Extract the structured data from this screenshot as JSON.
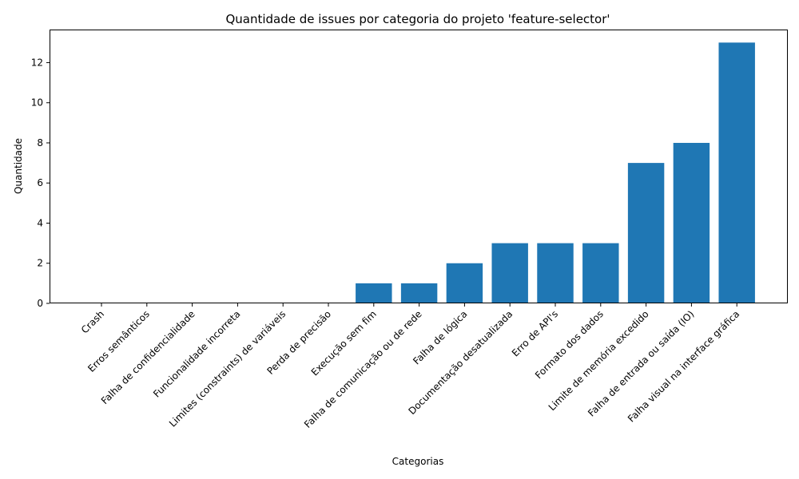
{
  "chart_data": {
    "type": "bar",
    "title": "Quantidade de issues por categoria do projeto 'feature-selector'",
    "xlabel": "Categorias",
    "ylabel": "Quantidade",
    "categories": [
      "Crash",
      "Erros semânticos",
      "Falha de confidencialidade",
      "Funcionalidade incorreta",
      "Limites (constraints) de variáveis",
      "Perda de precisão",
      "Execução sem fim",
      "Falha de comunicação ou de rede",
      "Falha de lógica",
      "Documentação desatualizada",
      "Erro de API's",
      "Formato dos dados",
      "Limite de memória excedido",
      "Falha de entrada ou saída (IO)",
      "Falha visual na interface gráfica"
    ],
    "values": [
      0,
      0,
      0,
      0,
      0,
      0,
      1,
      1,
      2,
      3,
      3,
      3,
      7,
      8,
      13
    ],
    "ylim": [
      0,
      13.65
    ],
    "yticks": [
      0,
      2,
      4,
      6,
      8,
      10,
      12
    ],
    "bar_color": "#1f77b4",
    "grid": false,
    "legend": false
  }
}
